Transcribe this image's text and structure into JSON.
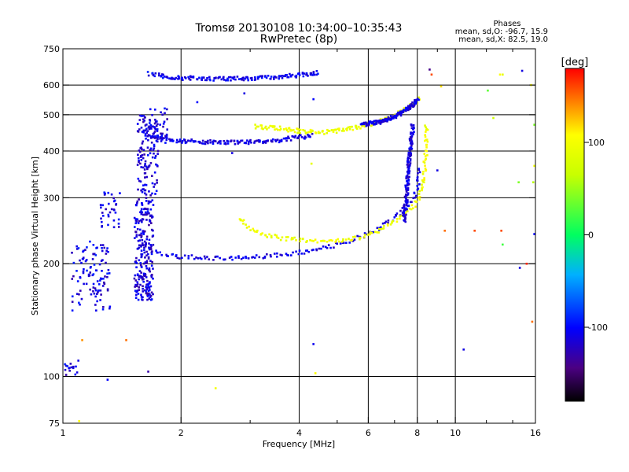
{
  "chart_data": {
    "type": "scatter",
    "title": "Tromsø 20130108 10:34:00–10:35:43",
    "subtitle": "RwPretec (8p)",
    "xlabel": "Frequency [MHz]",
    "ylabel": "Stationary phase Virtual Height [km]",
    "x_scale": "log",
    "y_scale": "log",
    "xlim": [
      1,
      16
    ],
    "ylim": [
      75,
      750
    ],
    "x_ticks": [
      1,
      2,
      4,
      6,
      8,
      10,
      16
    ],
    "y_ticks": [
      75,
      100,
      200,
      300,
      400,
      500,
      600,
      750
    ],
    "grid": true,
    "stats": {
      "heading": "Phases",
      "line_o": "mean, sd,O: -96.7, 15.9",
      "line_x": "mean, sd,X: 82.5, 19.0"
    },
    "colorbar": {
      "label": "[deg]",
      "ticks": [
        -100,
        0,
        100
      ],
      "range": [
        -180,
        180
      ]
    },
    "traces": [
      {
        "kind": "curve",
        "phase": -105,
        "x": [
          1.66,
          1.8,
          2.0,
          2.4,
          3.0,
          3.5,
          4.0,
          4.5
        ],
        "y": [
          645,
          632,
          627,
          624,
          625,
          630,
          638,
          648
        ]
      },
      {
        "kind": "curve",
        "phase": -110,
        "x": [
          1.6,
          1.75,
          2.0,
          2.5,
          3.0,
          3.5,
          4.0,
          4.3
        ],
        "y": [
          445,
          433,
          425,
          422,
          423,
          427,
          435,
          440
        ]
      },
      {
        "kind": "curve",
        "phase": 95,
        "x": [
          3.1,
          3.5,
          4.0,
          4.5,
          5.0,
          5.6,
          6.2,
          6.8,
          7.3,
          7.8,
          8.1
        ],
        "y": [
          465,
          460,
          452,
          448,
          452,
          462,
          475,
          493,
          510,
          530,
          550
        ]
      },
      {
        "kind": "curve",
        "phase": -110,
        "x": [
          5.8,
          6.5,
          7.2,
          7.7,
          8.0
        ],
        "y": [
          470,
          480,
          500,
          525,
          550
        ]
      },
      {
        "kind": "curve",
        "phase": -110,
        "x": [
          1.55,
          1.7,
          2.0,
          2.4,
          3.0,
          3.6,
          4.2,
          4.8,
          5.5,
          6.2,
          6.8,
          7.3,
          7.8,
          8.0,
          8.1
        ],
        "y": [
          230,
          215,
          209,
          207,
          208,
          211,
          216,
          222,
          232,
          245,
          260,
          275,
          295,
          320,
          360
        ]
      },
      {
        "kind": "curve",
        "phase": 98,
        "x": [
          2.8,
          3.0,
          3.3,
          3.7,
          4.2,
          4.8,
          5.4,
          6.0,
          6.6,
          7.2,
          7.7,
          8.1,
          8.3,
          8.4,
          8.45
        ],
        "y": [
          265,
          248,
          238,
          233,
          231,
          230,
          232,
          238,
          250,
          265,
          280,
          300,
          330,
          380,
          470
        ]
      },
      {
        "kind": "curve",
        "phase": -112,
        "x": [
          7.4,
          7.5,
          7.6,
          7.7,
          7.8
        ],
        "y": [
          260,
          300,
          360,
          420,
          470
        ]
      },
      {
        "kind": "blob",
        "phase": -108,
        "x_range": [
          1.05,
          1.32
        ],
        "y_range": [
          150,
          230
        ],
        "count": 110
      },
      {
        "kind": "blob",
        "phase": -110,
        "x_range": [
          1.24,
          1.4
        ],
        "y_range": [
          250,
          310
        ],
        "count": 35
      },
      {
        "kind": "blob",
        "phase": -112,
        "x_range": [
          1.52,
          1.7
        ],
        "y_range": [
          160,
          300
        ],
        "count": 230
      },
      {
        "kind": "blob",
        "phase": -112,
        "x_range": [
          1.55,
          1.75
        ],
        "y_range": [
          300,
          500
        ],
        "count": 130
      },
      {
        "kind": "blob",
        "phase": -112,
        "x_range": [
          1.65,
          1.85
        ],
        "y_range": [
          420,
          520
        ],
        "count": 40
      },
      {
        "kind": "blob",
        "phase": -110,
        "x_range": [
          1.0,
          1.1
        ],
        "y_range": [
          100,
          112
        ],
        "count": 16
      }
    ],
    "scatter_points": [
      {
        "x": 1.1,
        "y": 76,
        "phase": 110
      },
      {
        "x": 1.12,
        "y": 125,
        "phase": 140
      },
      {
        "x": 1.3,
        "y": 98,
        "phase": -100
      },
      {
        "x": 1.45,
        "y": 125,
        "phase": 150
      },
      {
        "x": 1.65,
        "y": 103,
        "phase": -130
      },
      {
        "x": 2.2,
        "y": 540,
        "phase": -100
      },
      {
        "x": 2.45,
        "y": 93,
        "phase": 100
      },
      {
        "x": 2.7,
        "y": 395,
        "phase": -110
      },
      {
        "x": 2.9,
        "y": 570,
        "phase": -110
      },
      {
        "x": 4.3,
        "y": 370,
        "phase": 90
      },
      {
        "x": 4.35,
        "y": 122,
        "phase": -105
      },
      {
        "x": 4.4,
        "y": 102,
        "phase": 110
      },
      {
        "x": 4.35,
        "y": 550,
        "phase": -100
      },
      {
        "x": 8.6,
        "y": 660,
        "phase": -140
      },
      {
        "x": 8.7,
        "y": 640,
        "phase": 160
      },
      {
        "x": 9.0,
        "y": 355,
        "phase": -110
      },
      {
        "x": 9.2,
        "y": 595,
        "phase": 120
      },
      {
        "x": 9.4,
        "y": 245,
        "phase": 150
      },
      {
        "x": 10.5,
        "y": 118,
        "phase": -110
      },
      {
        "x": 11.2,
        "y": 245,
        "phase": 160
      },
      {
        "x": 12.1,
        "y": 580,
        "phase": 30
      },
      {
        "x": 12.5,
        "y": 490,
        "phase": 70
      },
      {
        "x": 13.0,
        "y": 640,
        "phase": 110
      },
      {
        "x": 13.2,
        "y": 640,
        "phase": 90
      },
      {
        "x": 13.1,
        "y": 245,
        "phase": 160
      },
      {
        "x": 13.2,
        "y": 225,
        "phase": 20
      },
      {
        "x": 14.5,
        "y": 330,
        "phase": 40
      },
      {
        "x": 14.6,
        "y": 195,
        "phase": -110
      },
      {
        "x": 14.8,
        "y": 655,
        "phase": -110
      },
      {
        "x": 15.2,
        "y": 200,
        "phase": 170
      },
      {
        "x": 15.6,
        "y": 600,
        "phase": 110
      },
      {
        "x": 15.7,
        "y": 140,
        "phase": 150
      },
      {
        "x": 15.8,
        "y": 330,
        "phase": 60
      },
      {
        "x": 15.9,
        "y": 365,
        "phase": 100
      },
      {
        "x": 15.9,
        "y": 240,
        "phase": -100
      },
      {
        "x": 15.9,
        "y": 470,
        "phase": 40
      }
    ]
  }
}
